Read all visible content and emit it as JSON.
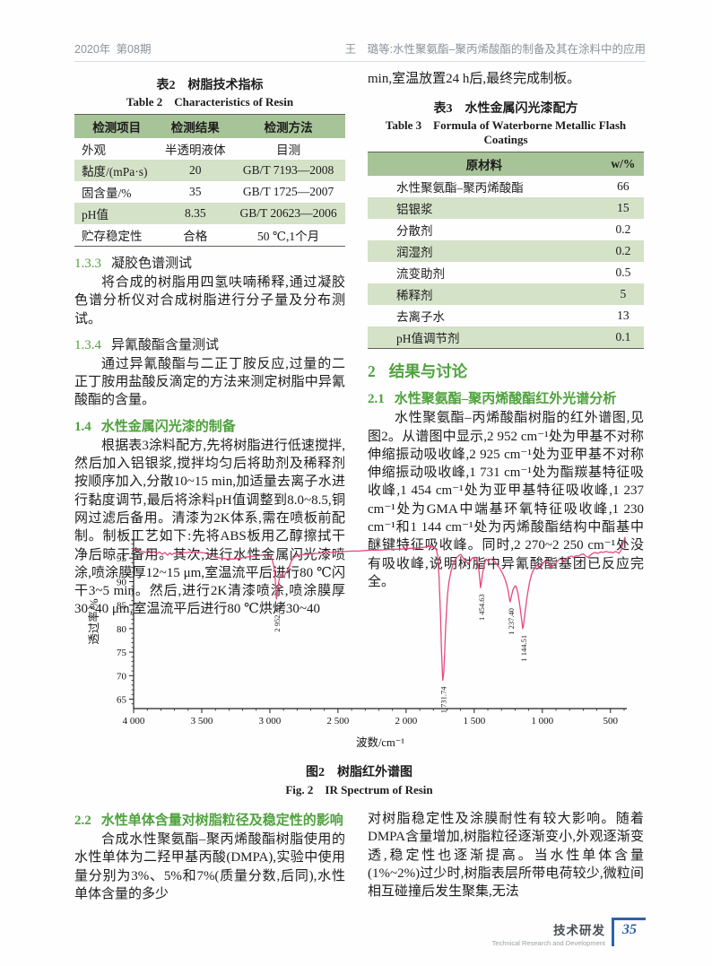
{
  "colors": {
    "accent_green": "#4fa23d",
    "table_header_bg": "#a7c398",
    "table_stripe_bg": "#d4e2c8",
    "chart_line": "#e8487f",
    "footer_blue": "#2e62a8",
    "header_gray": "#8b949b"
  },
  "header": {
    "left": "2020年 第08期",
    "right": "王  璐等:水性聚氨酯–聚丙烯酸酯的制备及其在涂料中的应用"
  },
  "table2": {
    "caption_zh": "表2　树脂技术指标",
    "caption_en": "Table 2  Characteristics of Resin",
    "headers": [
      "检测项目",
      "检测结果",
      "检测方法"
    ],
    "rows": [
      [
        "外观",
        "半透明液体",
        "目测"
      ],
      [
        "黏度/(mPa·s)",
        "20",
        "GB/T 7193—2008"
      ],
      [
        "固含量/%",
        "35",
        "GB/T 1725—2007"
      ],
      [
        "pH值",
        "8.35",
        "GB/T 20623—2006"
      ],
      [
        "贮存稳定性",
        "合格",
        "50 ℃,1个月"
      ]
    ]
  },
  "table3": {
    "caption_zh": "表3　水性金属闪光漆配方",
    "caption_en": "Table 3  Formula of Waterborne Metallic Flash Coatings",
    "headers": [
      "原材料",
      "w/%"
    ],
    "rows": [
      [
        "水性聚氨酯–聚丙烯酸酯",
        "66"
      ],
      [
        "铝银浆",
        "15"
      ],
      [
        "分散剂",
        "0.2"
      ],
      [
        "润湿剂",
        "0.2"
      ],
      [
        "流变助剂",
        "0.5"
      ],
      [
        "稀释剂",
        "5"
      ],
      [
        "去离子水",
        "13"
      ],
      [
        "pH值调节剂",
        "0.1"
      ]
    ]
  },
  "sections": {
    "s133_num": "1.3.3",
    "s133_title": "凝胶色谱测试",
    "p133": "将合成的树脂用四氢呋喃稀释,通过凝胶色谱分析仪对合成树脂进行分子量及分布测试。",
    "s134_num": "1.3.4",
    "s134_title": "异氰酸酯含量测试",
    "p134": "通过异氰酸酯与二正丁胺反应,过量的二正丁胺用盐酸反滴定的方法来测定树脂中异氰酸酯的含量。",
    "s14_num": "1.4",
    "s14_title": "水性金属闪光漆的制备",
    "p14": "根据表3涂料配方,先将树脂进行低速搅拌,然后加入铝银浆,搅拌均匀后将助剂及稀释剂按顺序加入,分散10~15 min,加适量去离子水进行黏度调节,最后将涂料pH值调整到8.0~8.5,铜网过滤后备用。清漆为2K体系,需在喷板前配制。制板工艺如下:先将ABS板用乙醇擦拭干净后晾干备用。其次,进行水性金属闪光漆喷涂,喷涂膜厚12~15 μm,室温流平后进行80 ℃闪干3~5 min。然后,进行2K清漆喷涂,喷涂膜厚30~40 μm,室温流平后进行80 ℃烘烤30~40",
    "p_min": "min,室温放置24 h后,最终完成制板。",
    "s2_num": "2",
    "s2_title": "结果与讨论",
    "s21_num": "2.1",
    "s21_title": "水性聚氨酯–聚丙烯酸酯红外光谱分析",
    "p21": "水性聚氨酯–丙烯酸酯树脂的红外谱图,见图2。从谱图中显示,2 952 cm⁻¹处为甲基不对称伸缩振动吸收峰,2 925 cm⁻¹处为亚甲基不对称伸缩振动吸收峰,1 731 cm⁻¹处为酯羰基特征吸收峰,1 454 cm⁻¹处为亚甲基特征吸收峰,1 237 cm⁻¹处为GMA中端基环氧特征吸收峰,1 230 cm⁻¹和1 144 cm⁻¹处为丙烯酸酯结构中酯基中醚键特征吸收峰。同时,2 270~2 250 cm⁻¹处没有吸收峰,说明树脂中异氰酸酯基团已反应完全。",
    "s22_num": "2.2",
    "s22_title": "水性单体含量对树脂粒径及稳定性的影响",
    "p22a": "合成水性聚氨酯–聚丙烯酸酯树脂使用的水性单体为二羟甲基丙酸(DMPA),实验中使用量分别为3%、5%和7%(质量分数,后同),水性单体含量的多少",
    "p22b": "对树脂稳定性及涂膜耐性有较大影响。随着DMPA含量增加,树脂粒径逐渐变小,外观逐渐变透,稳定性也逐渐提高。当水性单体含量(1%~2%)过少时,树脂表层所带电荷较少,微粒间相互碰撞后发生聚集,无法"
  },
  "figure": {
    "caption_zh": "图2　树脂红外谱图",
    "caption_en": "Fig. 2  IR Spectrum of Resin"
  },
  "footer": {
    "zh": "技术研发",
    "en": "Technical Research and Development",
    "page": "35"
  },
  "chart_data": {
    "type": "line",
    "title": "图2 树脂红外谱图 (IR Spectrum of Resin)",
    "xlabel": "波数/cm⁻¹",
    "ylabel": "透过率/%",
    "xlim": [
      4000,
      380
    ],
    "ylim": [
      63,
      100
    ],
    "x_axis_reversed": true,
    "grid": false,
    "legend": "none",
    "line_color": "#e8487f",
    "x_ticks": [
      4000,
      3500,
      3000,
      2500,
      2000,
      1500,
      1000,
      500
    ],
    "x_tick_labels": [
      "4 000",
      "3 500",
      "3 000",
      "2 500",
      "2 000",
      "1 500",
      "1 000",
      "500"
    ],
    "y_ticks": [
      65,
      70,
      75,
      80,
      85,
      90,
      95
    ],
    "peaks": [
      {
        "label": "2 952.29",
        "x": 2952,
        "y": 86.3
      },
      {
        "label": "1 731.74",
        "x": 1731,
        "y": 69.0
      },
      {
        "label": "1 454.63",
        "x": 1454,
        "y": 88.7
      },
      {
        "label": "1 237.40",
        "x": 1237,
        "y": 85.7
      },
      {
        "label": "1 144.51",
        "x": 1144,
        "y": 80.0
      }
    ],
    "series": [
      {
        "name": "transmittance",
        "points": [
          [
            4000,
            96.9
          ],
          [
            3970,
            96.7
          ],
          [
            3940,
            96.4
          ],
          [
            3910,
            96.2
          ],
          [
            3890,
            96.6
          ],
          [
            3870,
            96.0
          ],
          [
            3850,
            96.4
          ],
          [
            3830,
            95.9
          ],
          [
            3810,
            96.3
          ],
          [
            3790,
            95.8
          ],
          [
            3770,
            96.2
          ],
          [
            3750,
            95.6
          ],
          [
            3735,
            96.1
          ],
          [
            3720,
            95.7
          ],
          [
            3700,
            96.1
          ],
          [
            3680,
            95.8
          ],
          [
            3660,
            96.0
          ],
          [
            3640,
            96.2
          ],
          [
            3620,
            96.1
          ],
          [
            3600,
            96.2
          ],
          [
            3570,
            96.3
          ],
          [
            3540,
            96.3
          ],
          [
            3510,
            96.2
          ],
          [
            3480,
            96.1
          ],
          [
            3450,
            95.8
          ],
          [
            3420,
            95.5
          ],
          [
            3390,
            95.2
          ],
          [
            3360,
            95.0
          ],
          [
            3330,
            94.9
          ],
          [
            3300,
            94.8
          ],
          [
            3270,
            94.8
          ],
          [
            3240,
            94.9
          ],
          [
            3210,
            95.0
          ],
          [
            3180,
            95.2
          ],
          [
            3150,
            95.3
          ],
          [
            3120,
            95.4
          ],
          [
            3090,
            95.5
          ],
          [
            3060,
            95.6
          ],
          [
            3030,
            95.6
          ],
          [
            3010,
            95.5
          ],
          [
            2995,
            95.3
          ],
          [
            2985,
            94.8
          ],
          [
            2975,
            93.8
          ],
          [
            2965,
            92.2
          ],
          [
            2958,
            89.5
          ],
          [
            2952,
            86.3
          ],
          [
            2946,
            87.5
          ],
          [
            2938,
            89.3
          ],
          [
            2930,
            90.8
          ],
          [
            2922,
            91.6
          ],
          [
            2912,
            91.2
          ],
          [
            2900,
            91.0
          ],
          [
            2888,
            91.6
          ],
          [
            2875,
            92.2
          ],
          [
            2862,
            92.8
          ],
          [
            2850,
            93.8
          ],
          [
            2835,
            94.7
          ],
          [
            2820,
            95.2
          ],
          [
            2800,
            95.5
          ],
          [
            2770,
            95.7
          ],
          [
            2730,
            95.8
          ],
          [
            2690,
            95.9
          ],
          [
            2650,
            96.0
          ],
          [
            2600,
            96.1
          ],
          [
            2550,
            96.2
          ],
          [
            2500,
            96.3
          ],
          [
            2450,
            96.4
          ],
          [
            2400,
            96.5
          ],
          [
            2350,
            96.5
          ],
          [
            2300,
            96.6
          ],
          [
            2250,
            96.7
          ],
          [
            2200,
            96.7
          ],
          [
            2150,
            96.8
          ],
          [
            2100,
            96.9
          ],
          [
            2050,
            96.9
          ],
          [
            2000,
            97.0
          ],
          [
            1950,
            97.1
          ],
          [
            1900,
            97.2
          ],
          [
            1870,
            97.3
          ],
          [
            1845,
            97.4
          ],
          [
            1825,
            97.5
          ],
          [
            1810,
            97.4
          ],
          [
            1795,
            97.3
          ],
          [
            1780,
            97.0
          ],
          [
            1768,
            95.5
          ],
          [
            1758,
            91.0
          ],
          [
            1748,
            83.0
          ],
          [
            1740,
            75.0
          ],
          [
            1731,
            69.0
          ],
          [
            1724,
            70.5
          ],
          [
            1717,
            75.0
          ],
          [
            1710,
            80.0
          ],
          [
            1703,
            84.0
          ],
          [
            1695,
            87.5
          ],
          [
            1685,
            90.0
          ],
          [
            1672,
            92.0
          ],
          [
            1658,
            93.5
          ],
          [
            1642,
            94.5
          ],
          [
            1625,
            95.2
          ],
          [
            1610,
            95.6
          ],
          [
            1598,
            95.8
          ],
          [
            1585,
            95.2
          ],
          [
            1570,
            94.6
          ],
          [
            1555,
            94.1
          ],
          [
            1542,
            93.9
          ],
          [
            1530,
            94.3
          ],
          [
            1520,
            94.8
          ],
          [
            1510,
            95.1
          ],
          [
            1500,
            94.9
          ],
          [
            1492,
            95.2
          ],
          [
            1484,
            95.0
          ],
          [
            1475,
            94.2
          ],
          [
            1466,
            92.5
          ],
          [
            1458,
            90.2
          ],
          [
            1454,
            88.7
          ],
          [
            1448,
            89.6
          ],
          [
            1440,
            91.5
          ],
          [
            1430,
            93.2
          ],
          [
            1420,
            94.3
          ],
          [
            1412,
            94.8
          ],
          [
            1404,
            94.6
          ],
          [
            1396,
            94.3
          ],
          [
            1388,
            94.7
          ],
          [
            1380,
            94.8
          ],
          [
            1370,
            94.7
          ],
          [
            1358,
            94.4
          ],
          [
            1345,
            94.1
          ],
          [
            1330,
            93.5
          ],
          [
            1315,
            92.9
          ],
          [
            1300,
            92.2
          ],
          [
            1285,
            91.3
          ],
          [
            1270,
            90.2
          ],
          [
            1258,
            89.0
          ],
          [
            1248,
            87.6
          ],
          [
            1240,
            86.2
          ],
          [
            1237,
            85.7
          ],
          [
            1232,
            86.2
          ],
          [
            1224,
            87.3
          ],
          [
            1215,
            88.3
          ],
          [
            1205,
            88.9
          ],
          [
            1196,
            89.1
          ],
          [
            1188,
            88.6
          ],
          [
            1180,
            87.6
          ],
          [
            1172,
            86.2
          ],
          [
            1164,
            84.6
          ],
          [
            1156,
            82.8
          ],
          [
            1149,
            81.2
          ],
          [
            1144,
            80.0
          ],
          [
            1139,
            80.6
          ],
          [
            1132,
            82.2
          ],
          [
            1124,
            84.2
          ],
          [
            1114,
            86.4
          ],
          [
            1104,
            88.2
          ],
          [
            1094,
            89.8
          ],
          [
            1082,
            91.2
          ],
          [
            1070,
            92.2
          ],
          [
            1058,
            92.9
          ],
          [
            1046,
            93.3
          ],
          [
            1036,
            93.5
          ],
          [
            1028,
            93.2
          ],
          [
            1020,
            92.8
          ],
          [
            1012,
            93.0
          ],
          [
            1004,
            93.4
          ],
          [
            996,
            93.8
          ],
          [
            988,
            94.2
          ],
          [
            978,
            94.4
          ],
          [
            968,
            94.2
          ],
          [
            956,
            93.8
          ],
          [
            944,
            93.4
          ],
          [
            932,
            93.2
          ],
          [
            920,
            93.4
          ],
          [
            908,
            93.7
          ],
          [
            896,
            94.1
          ],
          [
            884,
            94.5
          ],
          [
            872,
            94.8
          ],
          [
            860,
            94.7
          ],
          [
            850,
            94.3
          ],
          [
            840,
            94.5
          ],
          [
            828,
            94.8
          ],
          [
            816,
            95.0
          ],
          [
            804,
            95.2
          ],
          [
            792,
            95.4
          ],
          [
            780,
            95.4
          ],
          [
            770,
            95.1
          ],
          [
            760,
            95.4
          ],
          [
            748,
            95.5
          ],
          [
            736,
            95.4
          ],
          [
            724,
            95.6
          ],
          [
            712,
            95.8
          ],
          [
            700,
            95.9
          ],
          [
            688,
            95.6
          ],
          [
            676,
            95.3
          ],
          [
            664,
            95.2
          ],
          [
            652,
            95.5
          ],
          [
            640,
            95.8
          ],
          [
            628,
            96.0
          ],
          [
            616,
            96.2
          ],
          [
            604,
            96.1
          ],
          [
            592,
            96.0
          ],
          [
            580,
            96.2
          ],
          [
            568,
            96.3
          ],
          [
            556,
            96.2
          ],
          [
            544,
            96.3
          ],
          [
            532,
            96.4
          ],
          [
            520,
            96.3
          ],
          [
            508,
            96.2
          ],
          [
            496,
            96.3
          ],
          [
            484,
            96.1
          ],
          [
            472,
            96.3
          ],
          [
            460,
            96.4
          ],
          [
            448,
            96.2
          ],
          [
            438,
            96.0
          ],
          [
            428,
            96.4
          ],
          [
            418,
            97.0
          ],
          [
            410,
            97.8
          ],
          [
            402,
            98.6
          ],
          [
            396,
            99.2
          ],
          [
            392,
            99.5
          ]
        ]
      }
    ]
  }
}
